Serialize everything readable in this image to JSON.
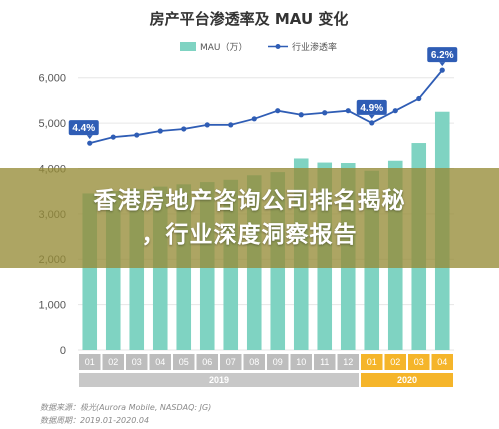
{
  "chart_data": {
    "type": "bar+line",
    "title": "房产平台渗透率及 MAU 变化",
    "categories": [
      "01",
      "02",
      "03",
      "04",
      "05",
      "06",
      "07",
      "08",
      "09",
      "10",
      "11",
      "12",
      "01",
      "02",
      "03",
      "04"
    ],
    "year_groups": [
      {
        "label": "2019",
        "count": 12,
        "color": "#c8c8c8"
      },
      {
        "label": "2020",
        "count": 4,
        "color": "#f5b52a"
      }
    ],
    "series": [
      {
        "name": "MAU（万）",
        "kind": "bar",
        "color": "#7fd3c2",
        "values": [
          3450,
          3500,
          3550,
          3600,
          3650,
          3700,
          3750,
          3850,
          3920,
          4220,
          4130,
          4120,
          3950,
          4170,
          4560,
          5250
        ]
      },
      {
        "name": "行业渗透率",
        "kind": "line",
        "color": "#2f5db5",
        "values": [
          4.4,
          4.55,
          4.6,
          4.7,
          4.75,
          4.85,
          4.85,
          5.0,
          5.2,
          5.1,
          5.15,
          5.2,
          4.9,
          5.2,
          5.5,
          6.2
        ]
      }
    ],
    "callouts": [
      {
        "text": "4.4%",
        "index": 0
      },
      {
        "text": "4.9%",
        "index": 12
      },
      {
        "text": "6.2%",
        "index": 15
      }
    ],
    "yticks": [
      "0",
      "1,000",
      "2,000",
      "3,000",
      "4,000",
      "5,000",
      "6,000"
    ],
    "ylim": [
      0,
      6500
    ],
    "grid": true,
    "legend": "top-center"
  },
  "overlay": {
    "line1": "香港房地产咨询公司排名揭秘",
    "line2": "，行业深度洞察报告"
  },
  "footer": {
    "source": "数据来源：极光(Aurora Mobile, NASDAQ: JG)",
    "period": "数据周期：2019.01-2020.04"
  },
  "colors": {
    "bar": "#7fd3c2",
    "line": "#2f5db5",
    "callout": "#2f5db5",
    "year2019": "#c8c8c8",
    "year2020": "#f5b52a",
    "month2019": "#bdbdbd",
    "month2020": "#f5b52a"
  }
}
